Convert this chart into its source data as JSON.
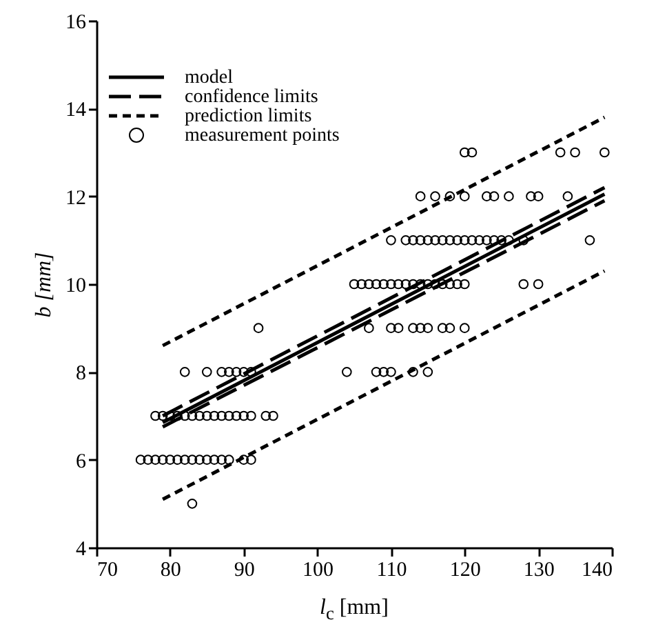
{
  "chart_data": {
    "type": "scatter",
    "xlabel": "l$_{c}$ [mm]",
    "ylabel": "b [mm]",
    "xlim": [
      70,
      140
    ],
    "xticks": [
      70,
      80,
      90,
      100,
      110,
      120,
      130,
      140
    ],
    "ylim": [
      4,
      16
    ],
    "yticks": [
      4,
      6,
      8,
      10,
      12,
      14,
      16
    ],
    "grid": false,
    "legend": "top left",
    "series": [
      {
        "name": "model",
        "type": "line",
        "line_style": "solid",
        "color": "#000000",
        "x": [
          79,
          139
        ],
        "values": [
          6.85,
          12.05
        ]
      },
      {
        "name": "confidence limits",
        "type": "line",
        "line_style": "dashed",
        "color": "#000000",
        "x": [
          79,
          139
        ],
        "values": [
          7.0,
          12.2
        ]
      },
      {
        "type": "line",
        "line_style": "dashed",
        "color": "#000000",
        "x": [
          79,
          139
        ],
        "values": [
          6.75,
          11.9
        ]
      },
      {
        "name": "prediction limits",
        "type": "line",
        "line_style": "dashed",
        "color": "#000000",
        "x": [
          79,
          139
        ],
        "values": [
          8.6,
          13.8
        ]
      },
      {
        "type": "line",
        "line_style": "dashed",
        "color": "#000000",
        "x": [
          79,
          139
        ],
        "values": [
          5.1,
          10.3
        ]
      },
      {
        "name": "measurement points",
        "marker": "circle",
        "color": "#000000",
        "x": [
          83,
          76,
          77,
          78,
          79,
          80,
          81,
          82,
          83,
          84,
          85,
          86,
          87,
          88,
          90,
          91,
          78,
          79,
          80,
          81,
          82,
          83,
          84,
          85,
          86,
          87,
          88,
          89,
          90,
          91,
          93,
          94,
          82,
          85,
          87,
          88,
          89,
          90,
          91,
          104,
          108,
          109,
          110,
          113,
          115,
          92,
          107,
          110,
          111,
          113,
          114,
          115,
          117,
          118,
          120,
          105,
          106,
          107,
          108,
          109,
          110,
          111,
          112,
          113,
          114,
          115,
          116,
          117,
          118,
          119,
          120,
          128,
          130,
          110,
          112,
          113,
          114,
          115,
          116,
          117,
          118,
          119,
          120,
          121,
          122,
          123,
          124,
          125,
          126,
          128,
          137,
          114,
          116,
          118,
          120,
          123,
          124,
          126,
          129,
          130,
          134,
          120,
          121,
          133,
          135,
          139
        ],
        "values": [
          5,
          6,
          6,
          6,
          6,
          6,
          6,
          6,
          6,
          6,
          6,
          6,
          6,
          6,
          6,
          6,
          7,
          7,
          7,
          7,
          7,
          7,
          7,
          7,
          7,
          7,
          7,
          7,
          7,
          7,
          7,
          7,
          8,
          8,
          8,
          8,
          8,
          8,
          8,
          8,
          8,
          8,
          8,
          8,
          8,
          9,
          9,
          9,
          9,
          9,
          9,
          9,
          9,
          9,
          9,
          10,
          10,
          10,
          10,
          10,
          10,
          10,
          10,
          10,
          10,
          10,
          10,
          10,
          10,
          10,
          10,
          10,
          10,
          11,
          11,
          11,
          11,
          11,
          11,
          11,
          11,
          11,
          11,
          11,
          11,
          11,
          11,
          11,
          11,
          11,
          11,
          12,
          12,
          12,
          12,
          12,
          12,
          12,
          12,
          12,
          12,
          13,
          13,
          13,
          13,
          13
        ]
      }
    ]
  }
}
